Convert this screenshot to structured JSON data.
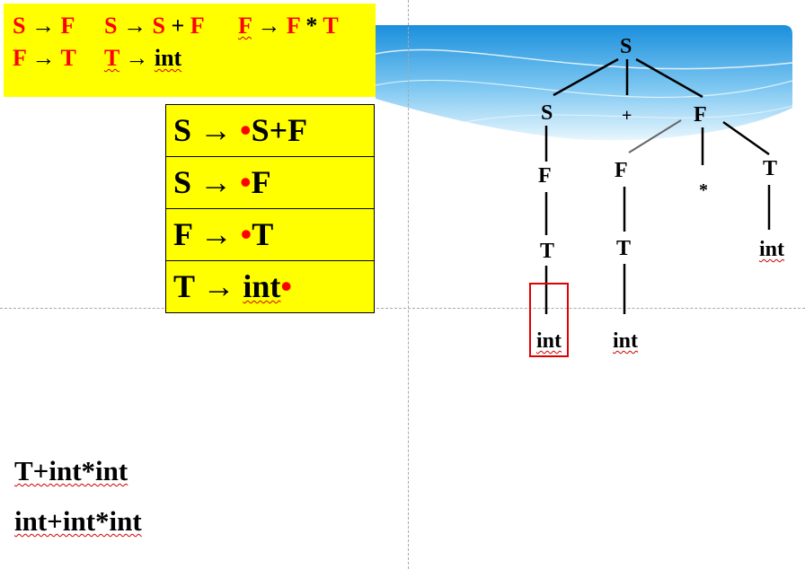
{
  "grammar": {
    "line1": {
      "p1_lhs": "S",
      "p1_arrow": "→",
      "p1_rhs": "F",
      "p2_lhs": "S",
      "p2_arrow": "→",
      "p2_rhs_a": "S",
      "p2_plus": "+",
      "p2_rhs_b": "F",
      "p3_lhs": "F",
      "p3_arrow": "→",
      "p3_rhs_a": "F",
      "p3_star": "*",
      "p3_rhs_b": "T"
    },
    "line2": {
      "p4_lhs": "F",
      "p4_arrow": "→",
      "p4_rhs": "T",
      "p5_lhs": "T",
      "p5_arrow": "→",
      "p5_rhs": "int"
    }
  },
  "items": [
    {
      "lhs": "S",
      "arrow": "→",
      "before_dot": "",
      "dot": "•",
      "after_dot": "S+F"
    },
    {
      "lhs": "S",
      "arrow": "→",
      "before_dot": "",
      "dot": "•",
      "after_dot": "F"
    },
    {
      "lhs": "F",
      "arrow": "→",
      "before_dot": "",
      "dot": "•",
      "after_dot": "T"
    },
    {
      "lhs": "T",
      "arrow": "→",
      "before_dot": "int",
      "dot": "•",
      "after_dot": ""
    }
  ],
  "tree": {
    "root": "S",
    "left_s": "S",
    "plus": "+",
    "right_f": "F",
    "left_f": "F",
    "left_t": "T",
    "left_int": "int",
    "mid_f": "F",
    "mid_t": "T",
    "mid_int": "int",
    "star": "*",
    "right_t": "T",
    "right_int": "int"
  },
  "inputs": {
    "line1": "T+int*int",
    "line2": "int+int*int"
  },
  "colors": {
    "highlight": "#ffff00",
    "terminal_red": "#ff0000",
    "box_red": "#e00000"
  }
}
